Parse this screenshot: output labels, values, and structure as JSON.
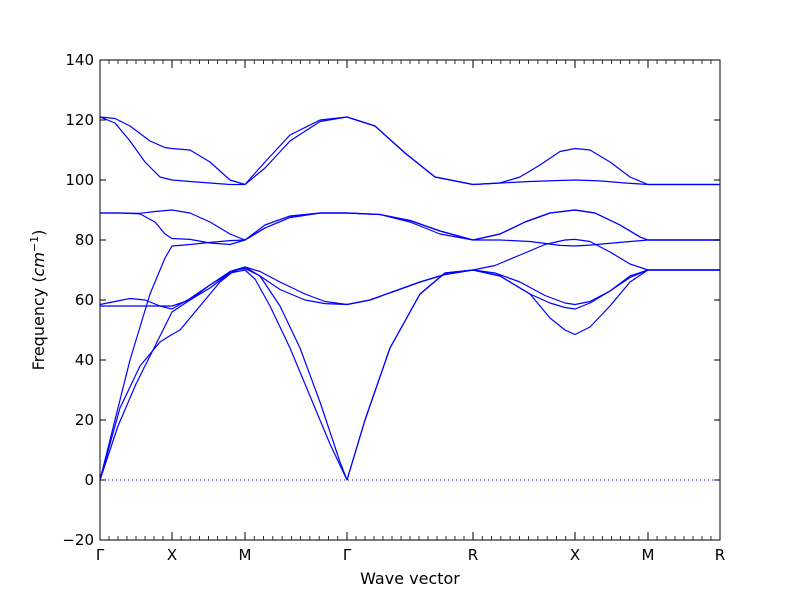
{
  "chart_data": {
    "type": "line",
    "xlabel": "Wave vector",
    "ylabel_text": "Frequency (",
    "ylabel_unit": "cm",
    "ylabel_exp": "−1",
    "ylabel_close": ")",
    "ylim": [
      -20,
      140
    ],
    "yticks": [
      "−20",
      "0",
      "20",
      "40",
      "60",
      "80",
      "100",
      "120",
      "140"
    ],
    "ytick_values": [
      -20,
      0,
      20,
      40,
      60,
      80,
      100,
      120,
      140
    ],
    "xlim": [
      0,
      620
    ],
    "high_symmetry_points": [
      {
        "label": "Γ",
        "x": 0
      },
      {
        "label": "X",
        "x": 72
      },
      {
        "label": "M",
        "x": 145
      },
      {
        "label": "Γ",
        "x": 247
      },
      {
        "label": "R",
        "x": 373
      },
      {
        "label": "X",
        "x": 475
      },
      {
        "label": "M",
        "x": 548
      },
      {
        "label": "R",
        "x": 620
      }
    ],
    "line_color": "#0000ff",
    "zero_line": true,
    "series": [
      {
        "values": [
          [
            0,
            0
          ],
          [
            20,
            24
          ],
          [
            40,
            38
          ],
          [
            60,
            46
          ],
          [
            72,
            48.5
          ],
          [
            80,
            50
          ],
          [
            100,
            58
          ],
          [
            120,
            66
          ],
          [
            135,
            70
          ],
          [
            145,
            70.5
          ],
          [
            160,
            68
          ],
          [
            180,
            58
          ],
          [
            200,
            44
          ],
          [
            220,
            26
          ],
          [
            240,
            6
          ],
          [
            247,
            0
          ],
          [
            265,
            20
          ],
          [
            290,
            44
          ],
          [
            320,
            62
          ],
          [
            345,
            69
          ],
          [
            373,
            70
          ],
          [
            400,
            68
          ],
          [
            430,
            62
          ],
          [
            450,
            54
          ],
          [
            465,
            50
          ],
          [
            475,
            48.5
          ],
          [
            490,
            51
          ],
          [
            510,
            58
          ],
          [
            530,
            66
          ],
          [
            548,
            70
          ],
          [
            570,
            70
          ],
          [
            600,
            70
          ],
          [
            620,
            70
          ]
        ]
      },
      {
        "values": [
          [
            0,
            0
          ],
          [
            18,
            18
          ],
          [
            36,
            32
          ],
          [
            54,
            44
          ],
          [
            66,
            52
          ],
          [
            72,
            56
          ],
          [
            90,
            60
          ],
          [
            110,
            65
          ],
          [
            130,
            69
          ],
          [
            145,
            70
          ],
          [
            155,
            67
          ],
          [
            170,
            58
          ],
          [
            190,
            44
          ],
          [
            210,
            28
          ],
          [
            230,
            12
          ],
          [
            247,
            0
          ],
          [
            265,
            20
          ],
          [
            290,
            44
          ],
          [
            320,
            62
          ],
          [
            345,
            69
          ],
          [
            373,
            70
          ],
          [
            400,
            68
          ],
          [
            430,
            62
          ],
          [
            450,
            59
          ],
          [
            465,
            57.5
          ],
          [
            475,
            57
          ],
          [
            490,
            59
          ],
          [
            510,
            63
          ],
          [
            530,
            68
          ],
          [
            548,
            70
          ],
          [
            580,
            70
          ],
          [
            620,
            70
          ]
        ]
      },
      {
        "values": [
          [
            0,
            0
          ],
          [
            15,
            20
          ],
          [
            30,
            40
          ],
          [
            50,
            62
          ],
          [
            65,
            74
          ],
          [
            72,
            78
          ],
          [
            90,
            78.5
          ],
          [
            110,
            79.2
          ],
          [
            130,
            79.8
          ],
          [
            145,
            80
          ],
          [
            165,
            84
          ],
          [
            190,
            87.5
          ],
          [
            220,
            89
          ],
          [
            247,
            89
          ],
          [
            280,
            88.5
          ],
          [
            310,
            86
          ],
          [
            340,
            82
          ],
          [
            373,
            80
          ],
          [
            400,
            80
          ],
          [
            430,
            79.5
          ],
          [
            460,
            78.2
          ],
          [
            475,
            78
          ],
          [
            490,
            78.3
          ],
          [
            520,
            79.2
          ],
          [
            548,
            80
          ],
          [
            580,
            80
          ],
          [
            620,
            80
          ]
        ]
      },
      {
        "values": [
          [
            0,
            58
          ],
          [
            20,
            58
          ],
          [
            40,
            58
          ],
          [
            60,
            58
          ],
          [
            72,
            58
          ],
          [
            90,
            60
          ],
          [
            110,
            64
          ],
          [
            130,
            69
          ],
          [
            145,
            71
          ],
          [
            160,
            69.5
          ],
          [
            180,
            66
          ],
          [
            205,
            62
          ],
          [
            225,
            59.5
          ],
          [
            247,
            58.5
          ],
          [
            270,
            60
          ],
          [
            295,
            63
          ],
          [
            320,
            66
          ],
          [
            345,
            68.5
          ],
          [
            373,
            70
          ],
          [
            395,
            71.5
          ],
          [
            420,
            75
          ],
          [
            445,
            78.5
          ],
          [
            465,
            80
          ],
          [
            475,
            80.2
          ],
          [
            490,
            79.5
          ],
          [
            510,
            76
          ],
          [
            530,
            72
          ],
          [
            548,
            70
          ],
          [
            580,
            70
          ],
          [
            620,
            70
          ]
        ]
      },
      {
        "values": [
          [
            0,
            58.5
          ],
          [
            15,
            59.5
          ],
          [
            30,
            60.5
          ],
          [
            45,
            60
          ],
          [
            60,
            58
          ],
          [
            72,
            57
          ],
          [
            90,
            60.5
          ],
          [
            110,
            65
          ],
          [
            130,
            69.5
          ],
          [
            145,
            71
          ],
          [
            160,
            68
          ],
          [
            180,
            63.5
          ],
          [
            205,
            60
          ],
          [
            225,
            58.8
          ],
          [
            247,
            58.5
          ],
          [
            270,
            60
          ],
          [
            295,
            63
          ],
          [
            320,
            66
          ],
          [
            345,
            68.5
          ],
          [
            373,
            70
          ],
          [
            395,
            69
          ],
          [
            420,
            66
          ],
          [
            445,
            61.5
          ],
          [
            465,
            59
          ],
          [
            475,
            58.5
          ],
          [
            490,
            59.5
          ],
          [
            510,
            63
          ],
          [
            530,
            67.5
          ],
          [
            548,
            70
          ],
          [
            580,
            70
          ],
          [
            620,
            70
          ]
        ]
      },
      {
        "values": [
          [
            0,
            89
          ],
          [
            20,
            89
          ],
          [
            40,
            88.7
          ],
          [
            55,
            86
          ],
          [
            65,
            82
          ],
          [
            72,
            80.5
          ],
          [
            90,
            80.2
          ],
          [
            110,
            79
          ],
          [
            130,
            78.5
          ],
          [
            145,
            80
          ],
          [
            165,
            84
          ],
          [
            190,
            87.5
          ],
          [
            220,
            89
          ],
          [
            247,
            89
          ],
          [
            280,
            88.5
          ],
          [
            310,
            86.5
          ],
          [
            340,
            83
          ],
          [
            373,
            80
          ],
          [
            400,
            82
          ],
          [
            425,
            86
          ],
          [
            450,
            89
          ],
          [
            475,
            90
          ],
          [
            495,
            89
          ],
          [
            520,
            85
          ],
          [
            540,
            81
          ],
          [
            548,
            80
          ],
          [
            580,
            80
          ],
          [
            620,
            80
          ]
        ]
      },
      {
        "values": [
          [
            0,
            89
          ],
          [
            20,
            89
          ],
          [
            40,
            88.9
          ],
          [
            55,
            89.5
          ],
          [
            72,
            90
          ],
          [
            90,
            89
          ],
          [
            110,
            86
          ],
          [
            130,
            82
          ],
          [
            145,
            80
          ],
          [
            165,
            85
          ],
          [
            190,
            88
          ],
          [
            220,
            89
          ],
          [
            247,
            89
          ],
          [
            280,
            88.5
          ],
          [
            310,
            86.5
          ],
          [
            340,
            83
          ],
          [
            373,
            80
          ],
          [
            400,
            82
          ],
          [
            425,
            86
          ],
          [
            450,
            89
          ],
          [
            475,
            90
          ],
          [
            495,
            89
          ],
          [
            520,
            85
          ],
          [
            540,
            81
          ],
          [
            548,
            80
          ],
          [
            580,
            80
          ],
          [
            620,
            80
          ]
        ]
      },
      {
        "values": [
          [
            0,
            121
          ],
          [
            15,
            119
          ],
          [
            30,
            113
          ],
          [
            45,
            106
          ],
          [
            60,
            101
          ],
          [
            72,
            100
          ],
          [
            90,
            99.5
          ],
          [
            110,
            99
          ],
          [
            130,
            98.5
          ],
          [
            145,
            98.5
          ],
          [
            165,
            104
          ],
          [
            190,
            113
          ],
          [
            220,
            119.5
          ],
          [
            247,
            121
          ],
          [
            275,
            118
          ],
          [
            305,
            109
          ],
          [
            335,
            101
          ],
          [
            373,
            98.5
          ],
          [
            400,
            99
          ],
          [
            430,
            99.5
          ],
          [
            455,
            99.8
          ],
          [
            475,
            100
          ],
          [
            500,
            99.7
          ],
          [
            525,
            99
          ],
          [
            548,
            98.5
          ],
          [
            580,
            98.5
          ],
          [
            620,
            98.5
          ]
        ]
      },
      {
        "values": [
          [
            0,
            121
          ],
          [
            15,
            120.5
          ],
          [
            30,
            118
          ],
          [
            50,
            113
          ],
          [
            65,
            110.8
          ],
          [
            72,
            110.5
          ],
          [
            90,
            110
          ],
          [
            110,
            106
          ],
          [
            130,
            100
          ],
          [
            145,
            98.5
          ],
          [
            165,
            106
          ],
          [
            190,
            115
          ],
          [
            220,
            120
          ],
          [
            247,
            121
          ],
          [
            275,
            118
          ],
          [
            305,
            109
          ],
          [
            335,
            101
          ],
          [
            373,
            98.5
          ],
          [
            400,
            99
          ],
          [
            420,
            101
          ],
          [
            440,
            105
          ],
          [
            460,
            109.5
          ],
          [
            475,
            110.5
          ],
          [
            490,
            110
          ],
          [
            510,
            106
          ],
          [
            530,
            101
          ],
          [
            548,
            98.5
          ],
          [
            580,
            98.5
          ],
          [
            620,
            98.5
          ]
        ]
      }
    ]
  }
}
